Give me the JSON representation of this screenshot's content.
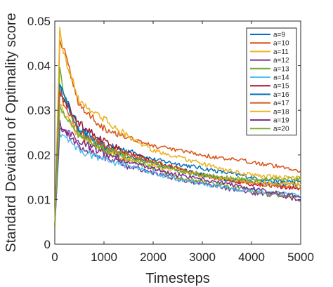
{
  "chart_data": {
    "type": "line",
    "xlabel": "Timesteps",
    "ylabel": "Standard Deviation of Optimality score",
    "xlim": [
      0,
      5000
    ],
    "ylim": [
      0,
      0.05
    ],
    "x_ticks": [
      0,
      1000,
      2000,
      3000,
      4000,
      5000
    ],
    "y_ticks": [
      0,
      0.01,
      0.02,
      0.03,
      0.04,
      0.05
    ],
    "x_tick_labels": [
      "0",
      "1000",
      "2000",
      "3000",
      "4000",
      "5000"
    ],
    "y_tick_labels": [
      "0",
      "0.01",
      "0.02",
      "0.03",
      "0.04",
      "0.05"
    ],
    "grid": false,
    "legend_position": "top-right",
    "series": [
      {
        "name": "a=9",
        "color": "#0072BD",
        "x": [
          0,
          100,
          200,
          500,
          1000,
          1500,
          2000,
          2500,
          3000,
          3500,
          4000,
          4500,
          5000
        ],
        "values": [
          0.004,
          0.035,
          0.033,
          0.026,
          0.022,
          0.021,
          0.019,
          0.018,
          0.017,
          0.016,
          0.015,
          0.014,
          0.014
        ]
      },
      {
        "name": "a=10",
        "color": "#D95319",
        "x": [
          0,
          100,
          200,
          500,
          1000,
          1500,
          2000,
          2500,
          3000,
          3500,
          4000,
          4500,
          5000
        ],
        "values": [
          0.004,
          0.046,
          0.043,
          0.031,
          0.026,
          0.024,
          0.022,
          0.021,
          0.02,
          0.019,
          0.0185,
          0.0175,
          0.0165
        ]
      },
      {
        "name": "a=11",
        "color": "#EDB120",
        "x": [
          0,
          100,
          200,
          500,
          1000,
          1500,
          2000,
          2500,
          3000,
          3500,
          4000,
          4500,
          5000
        ],
        "values": [
          0.004,
          0.048,
          0.042,
          0.032,
          0.028,
          0.024,
          0.021,
          0.0195,
          0.018,
          0.0165,
          0.0155,
          0.015,
          0.015
        ]
      },
      {
        "name": "a=12",
        "color": "#7E2F8E",
        "x": [
          0,
          100,
          200,
          500,
          1000,
          1500,
          2000,
          2500,
          3000,
          3500,
          4000,
          4500,
          5000
        ],
        "values": [
          0.004,
          0.026,
          0.025,
          0.022,
          0.0195,
          0.0175,
          0.016,
          0.0145,
          0.0135,
          0.0125,
          0.0115,
          0.011,
          0.01
        ]
      },
      {
        "name": "a=13",
        "color": "#77AC30",
        "x": [
          0,
          100,
          200,
          500,
          1000,
          1500,
          2000,
          2500,
          3000,
          3500,
          4000,
          4500,
          5000
        ],
        "values": [
          0.004,
          0.039,
          0.033,
          0.025,
          0.021,
          0.019,
          0.017,
          0.015,
          0.014,
          0.013,
          0.012,
          0.011,
          0.0105
        ]
      },
      {
        "name": "a=14",
        "color": "#4DBEEE",
        "x": [
          0,
          100,
          200,
          500,
          1000,
          1500,
          2000,
          2500,
          3000,
          3500,
          4000,
          4500,
          5000
        ],
        "values": [
          0.004,
          0.025,
          0.024,
          0.021,
          0.019,
          0.0175,
          0.016,
          0.0145,
          0.0135,
          0.0125,
          0.012,
          0.0115,
          0.011
        ]
      },
      {
        "name": "a=15",
        "color": "#A2142F",
        "x": [
          0,
          100,
          200,
          500,
          1000,
          1500,
          2000,
          2500,
          3000,
          3500,
          4000,
          4500,
          5000
        ],
        "values": [
          0.004,
          0.034,
          0.032,
          0.027,
          0.023,
          0.0205,
          0.0185,
          0.017,
          0.0155,
          0.0145,
          0.0135,
          0.013,
          0.0125
        ]
      },
      {
        "name": "a=16",
        "color": "#0072BD",
        "x": [
          0,
          100,
          200,
          500,
          1000,
          1500,
          2000,
          2500,
          3000,
          3500,
          4000,
          4500,
          5000
        ],
        "values": [
          0.004,
          0.036,
          0.033,
          0.025,
          0.0215,
          0.0195,
          0.018,
          0.0165,
          0.0155,
          0.0145,
          0.014,
          0.0135,
          0.0135
        ]
      },
      {
        "name": "a=17",
        "color": "#D95319",
        "x": [
          0,
          100,
          200,
          500,
          1000,
          1500,
          2000,
          2500,
          3000,
          3500,
          4000,
          4500,
          5000
        ],
        "values": [
          0.004,
          0.034,
          0.031,
          0.025,
          0.022,
          0.02,
          0.0185,
          0.017,
          0.0155,
          0.0145,
          0.0135,
          0.013,
          0.0125
        ]
      },
      {
        "name": "a=18",
        "color": "#EDB120",
        "x": [
          0,
          100,
          200,
          500,
          1000,
          1500,
          2000,
          2500,
          3000,
          3500,
          4000,
          4500,
          5000
        ],
        "values": [
          0.004,
          0.031,
          0.029,
          0.024,
          0.021,
          0.019,
          0.0175,
          0.0165,
          0.0155,
          0.0145,
          0.014,
          0.0135,
          0.0135
        ]
      },
      {
        "name": "a=19",
        "color": "#7E2F8E",
        "x": [
          0,
          100,
          200,
          500,
          1000,
          1500,
          2000,
          2500,
          3000,
          3500,
          4000,
          4500,
          5000
        ],
        "values": [
          0.004,
          0.027,
          0.026,
          0.023,
          0.0205,
          0.0185,
          0.017,
          0.0155,
          0.0145,
          0.0135,
          0.0125,
          0.0115,
          0.0105
        ]
      },
      {
        "name": "a=20",
        "color": "#77AC30",
        "x": [
          0,
          100,
          200,
          500,
          1000,
          1500,
          2000,
          2500,
          3000,
          3500,
          4000,
          4500,
          5000
        ],
        "values": [
          0.004,
          0.031,
          0.029,
          0.024,
          0.0215,
          0.0195,
          0.018,
          0.0165,
          0.0155,
          0.015,
          0.0145,
          0.0145,
          0.0145
        ]
      }
    ]
  }
}
